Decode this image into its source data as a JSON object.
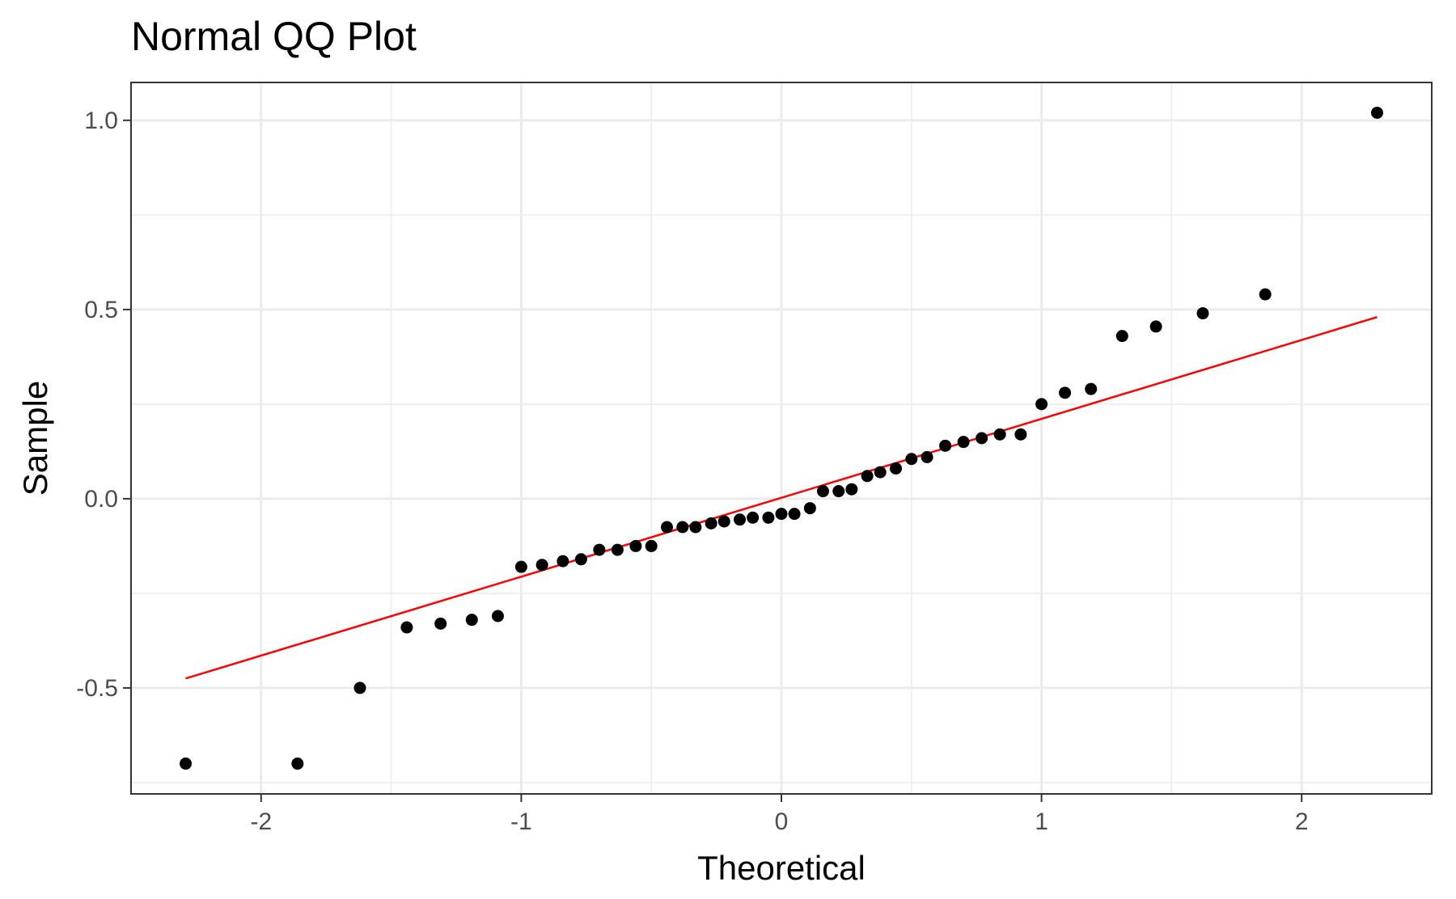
{
  "chart_data": {
    "type": "scatter",
    "title": "Normal QQ Plot",
    "xlabel": "Theoretical",
    "ylabel": "Sample",
    "xlim": [
      -2.5,
      2.5
    ],
    "ylim": [
      -0.78,
      1.1
    ],
    "x_ticks": [
      -2,
      -1,
      0,
      1,
      2
    ],
    "x_tick_labels": [
      "-2",
      "-1",
      "0",
      "1",
      "2"
    ],
    "y_ticks": [
      -0.5,
      0.0,
      0.5,
      1.0
    ],
    "y_tick_labels": [
      "-0.5",
      "0.0",
      "0.5",
      "1.0"
    ],
    "grid": true,
    "legend": "none",
    "point_color": "#000000",
    "line_color": "#ff0000",
    "points": [
      {
        "x": -2.29,
        "y": -0.7
      },
      {
        "x": -1.86,
        "y": -0.7
      },
      {
        "x": -1.62,
        "y": -0.5
      },
      {
        "x": -1.44,
        "y": -0.34
      },
      {
        "x": -1.31,
        "y": -0.33
      },
      {
        "x": -1.19,
        "y": -0.32
      },
      {
        "x": -1.09,
        "y": -0.31
      },
      {
        "x": -1.0,
        "y": -0.18
      },
      {
        "x": -0.92,
        "y": -0.175
      },
      {
        "x": -0.84,
        "y": -0.165
      },
      {
        "x": -0.77,
        "y": -0.16
      },
      {
        "x": -0.7,
        "y": -0.135
      },
      {
        "x": -0.63,
        "y": -0.135
      },
      {
        "x": -0.56,
        "y": -0.125
      },
      {
        "x": -0.5,
        "y": -0.125
      },
      {
        "x": -0.44,
        "y": -0.075
      },
      {
        "x": -0.38,
        "y": -0.075
      },
      {
        "x": -0.33,
        "y": -0.075
      },
      {
        "x": -0.27,
        "y": -0.065
      },
      {
        "x": -0.22,
        "y": -0.06
      },
      {
        "x": -0.16,
        "y": -0.055
      },
      {
        "x": -0.11,
        "y": -0.05
      },
      {
        "x": -0.05,
        "y": -0.05
      },
      {
        "x": 0.0,
        "y": -0.04
      },
      {
        "x": 0.05,
        "y": -0.04
      },
      {
        "x": 0.11,
        "y": -0.025
      },
      {
        "x": 0.16,
        "y": 0.02
      },
      {
        "x": 0.22,
        "y": 0.02
      },
      {
        "x": 0.27,
        "y": 0.025
      },
      {
        "x": 0.33,
        "y": 0.06
      },
      {
        "x": 0.38,
        "y": 0.07
      },
      {
        "x": 0.44,
        "y": 0.08
      },
      {
        "x": 0.5,
        "y": 0.105
      },
      {
        "x": 0.56,
        "y": 0.11
      },
      {
        "x": 0.63,
        "y": 0.14
      },
      {
        "x": 0.7,
        "y": 0.15
      },
      {
        "x": 0.77,
        "y": 0.16
      },
      {
        "x": 0.84,
        "y": 0.17
      },
      {
        "x": 0.92,
        "y": 0.17
      },
      {
        "x": 1.0,
        "y": 0.25
      },
      {
        "x": 1.09,
        "y": 0.28
      },
      {
        "x": 1.19,
        "y": 0.29
      },
      {
        "x": 1.31,
        "y": 0.43
      },
      {
        "x": 1.44,
        "y": 0.455
      },
      {
        "x": 1.62,
        "y": 0.49
      },
      {
        "x": 1.86,
        "y": 0.54
      },
      {
        "x": 2.29,
        "y": 1.02
      }
    ],
    "reference_line": {
      "x": [
        -2.29,
        2.29
      ],
      "y": [
        -0.475,
        0.48
      ]
    }
  }
}
